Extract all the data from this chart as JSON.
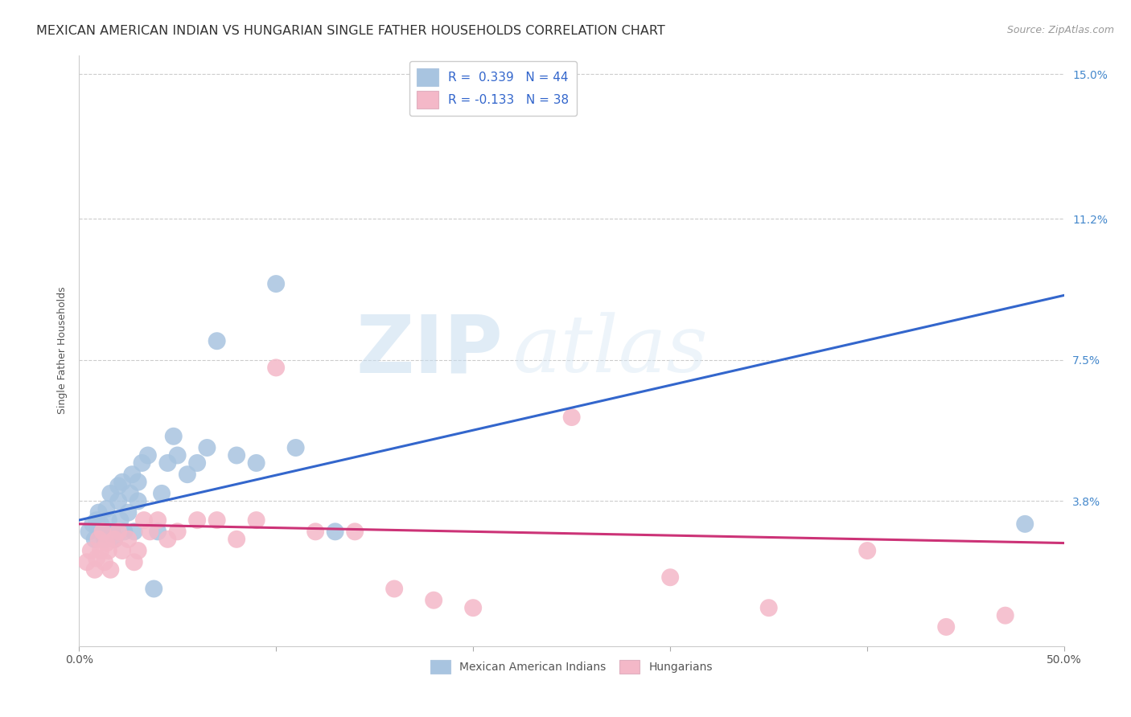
{
  "title": "MEXICAN AMERICAN INDIAN VS HUNGARIAN SINGLE FATHER HOUSEHOLDS CORRELATION CHART",
  "source": "Source: ZipAtlas.com",
  "ylabel": "Single Father Households",
  "xlim": [
    0.0,
    0.5
  ],
  "ylim": [
    0.0,
    0.155
  ],
  "yticks": [
    0.038,
    0.075,
    0.112,
    0.15
  ],
  "ytick_labels": [
    "3.8%",
    "7.5%",
    "11.2%",
    "15.0%"
  ],
  "xticks": [
    0.0,
    0.1,
    0.2,
    0.3,
    0.4,
    0.5
  ],
  "xtick_labels": [
    "0.0%",
    "",
    "",
    "",
    "",
    "50.0%"
  ],
  "grid_color": "#cccccc",
  "background_color": "#ffffff",
  "watermark_zip": "ZIP",
  "watermark_atlas": "atlas",
  "blue_R": "0.339",
  "blue_N": "44",
  "pink_R": "-0.133",
  "pink_N": "38",
  "blue_color": "#a8c4e0",
  "pink_color": "#f4b8c8",
  "blue_line_color": "#3366cc",
  "pink_line_color": "#cc3377",
  "blue_scatter_x": [
    0.005,
    0.007,
    0.008,
    0.009,
    0.01,
    0.01,
    0.011,
    0.012,
    0.013,
    0.014,
    0.015,
    0.015,
    0.016,
    0.017,
    0.018,
    0.02,
    0.02,
    0.021,
    0.022,
    0.023,
    0.025,
    0.026,
    0.027,
    0.028,
    0.03,
    0.03,
    0.032,
    0.035,
    0.038,
    0.04,
    0.042,
    0.045,
    0.048,
    0.05,
    0.055,
    0.06,
    0.065,
    0.07,
    0.08,
    0.09,
    0.1,
    0.11,
    0.13,
    0.48
  ],
  "blue_scatter_y": [
    0.03,
    0.032,
    0.028,
    0.033,
    0.031,
    0.035,
    0.032,
    0.03,
    0.028,
    0.036,
    0.03,
    0.033,
    0.04,
    0.03,
    0.028,
    0.038,
    0.042,
    0.033,
    0.043,
    0.03,
    0.035,
    0.04,
    0.045,
    0.03,
    0.038,
    0.043,
    0.048,
    0.05,
    0.015,
    0.03,
    0.04,
    0.048,
    0.055,
    0.05,
    0.045,
    0.048,
    0.052,
    0.08,
    0.05,
    0.048,
    0.095,
    0.052,
    0.03,
    0.032
  ],
  "pink_scatter_x": [
    0.004,
    0.006,
    0.008,
    0.009,
    0.01,
    0.011,
    0.012,
    0.013,
    0.014,
    0.015,
    0.016,
    0.018,
    0.02,
    0.022,
    0.025,
    0.028,
    0.03,
    0.033,
    0.036,
    0.04,
    0.045,
    0.05,
    0.06,
    0.07,
    0.08,
    0.09,
    0.1,
    0.12,
    0.14,
    0.16,
    0.18,
    0.2,
    0.25,
    0.3,
    0.35,
    0.4,
    0.44,
    0.47
  ],
  "pink_scatter_y": [
    0.022,
    0.025,
    0.02,
    0.023,
    0.028,
    0.025,
    0.03,
    0.022,
    0.027,
    0.025,
    0.02,
    0.028,
    0.03,
    0.025,
    0.028,
    0.022,
    0.025,
    0.033,
    0.03,
    0.033,
    0.028,
    0.03,
    0.033,
    0.033,
    0.028,
    0.033,
    0.073,
    0.03,
    0.03,
    0.015,
    0.012,
    0.01,
    0.06,
    0.018,
    0.01,
    0.025,
    0.005,
    0.008
  ],
  "blue_line_y_start": 0.033,
  "blue_line_y_end": 0.092,
  "pink_line_y_start": 0.032,
  "pink_line_y_end": 0.027,
  "title_fontsize": 11.5,
  "axis_label_fontsize": 9,
  "tick_fontsize": 10,
  "legend_fontsize": 11,
  "source_fontsize": 9
}
